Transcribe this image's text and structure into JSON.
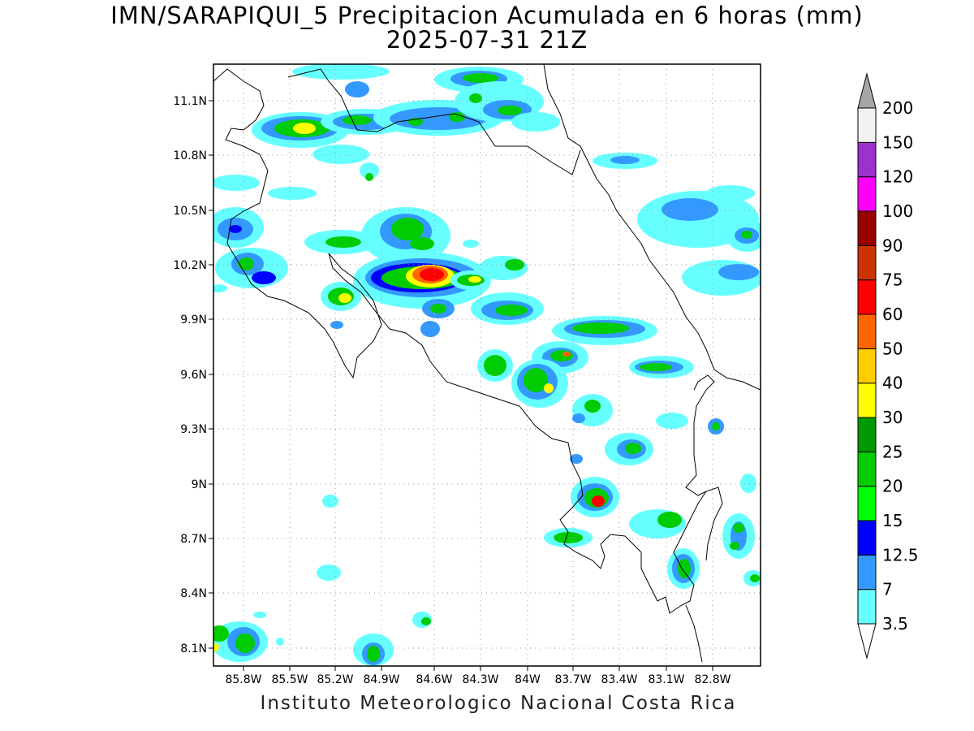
{
  "title": {
    "line1": "IMN/SARAPIQUI_5 Precipitacion Acumulada en 6 horas (mm)",
    "line2": "2025-07-31 21Z"
  },
  "footer": "Instituto Meteorologico Nacional Costa Rica",
  "map": {
    "lon_ticks": [
      "85.8W",
      "85.5W",
      "85.2W",
      "84.9W",
      "84.6W",
      "84.3W",
      "84W",
      "83.7W",
      "83.4W",
      "83.1W",
      "82.8W"
    ],
    "lat_ticks": [
      "11.1N",
      "10.8N",
      "10.5N",
      "10.2N",
      "9.9N",
      "9.6N",
      "9.3N",
      "9N",
      "8.7N",
      "8.4N",
      "8.1N"
    ],
    "gridlines": true
  },
  "colorbar": {
    "labels": [
      "3.5",
      "7",
      "12.5",
      "15",
      "20",
      "25",
      "30",
      "40",
      "50",
      "60",
      "75",
      "90",
      "100",
      "120",
      "150",
      "200"
    ],
    "colors": [
      "#66ffff",
      "#3399ff",
      "#0000ff",
      "#00ff00",
      "#00cc00",
      "#009900",
      "#ffff00",
      "#ffcc00",
      "#ff6600",
      "#ff0000",
      "#cc3300",
      "#990000",
      "#ff00ff",
      "#9933cc",
      "#f2f2f2"
    ],
    "over_color": "#a6a6a6",
    "under_color": "#ffffff"
  }
}
